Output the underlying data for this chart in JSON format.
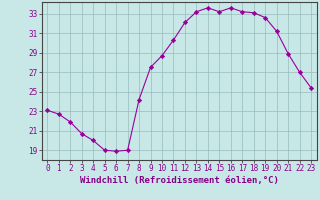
{
  "x": [
    0,
    1,
    2,
    3,
    4,
    5,
    6,
    7,
    8,
    9,
    10,
    11,
    12,
    13,
    14,
    15,
    16,
    17,
    18,
    19,
    20,
    21,
    22,
    23
  ],
  "y": [
    23.1,
    22.7,
    21.9,
    20.7,
    20.0,
    19.0,
    18.9,
    19.0,
    24.2,
    27.5,
    28.7,
    30.3,
    32.1,
    33.2,
    33.6,
    33.2,
    33.6,
    33.2,
    33.1,
    32.6,
    31.2,
    28.9,
    27.0,
    25.4
  ],
  "line_color": "#990099",
  "marker": "D",
  "marker_size": 2.2,
  "background_color": "#c8e8e8",
  "grid_color": "#99bbbb",
  "xlabel": "Windchill (Refroidissement éolien,°C)",
  "xlabel_color": "#880088",
  "yticks": [
    19,
    21,
    23,
    25,
    27,
    29,
    31,
    33
  ],
  "ylim": [
    18.0,
    34.2
  ],
  "xlim": [
    -0.5,
    23.5
  ],
  "tick_color": "#880088",
  "tick_fontsize": 5.5,
  "xlabel_fontsize": 6.5
}
